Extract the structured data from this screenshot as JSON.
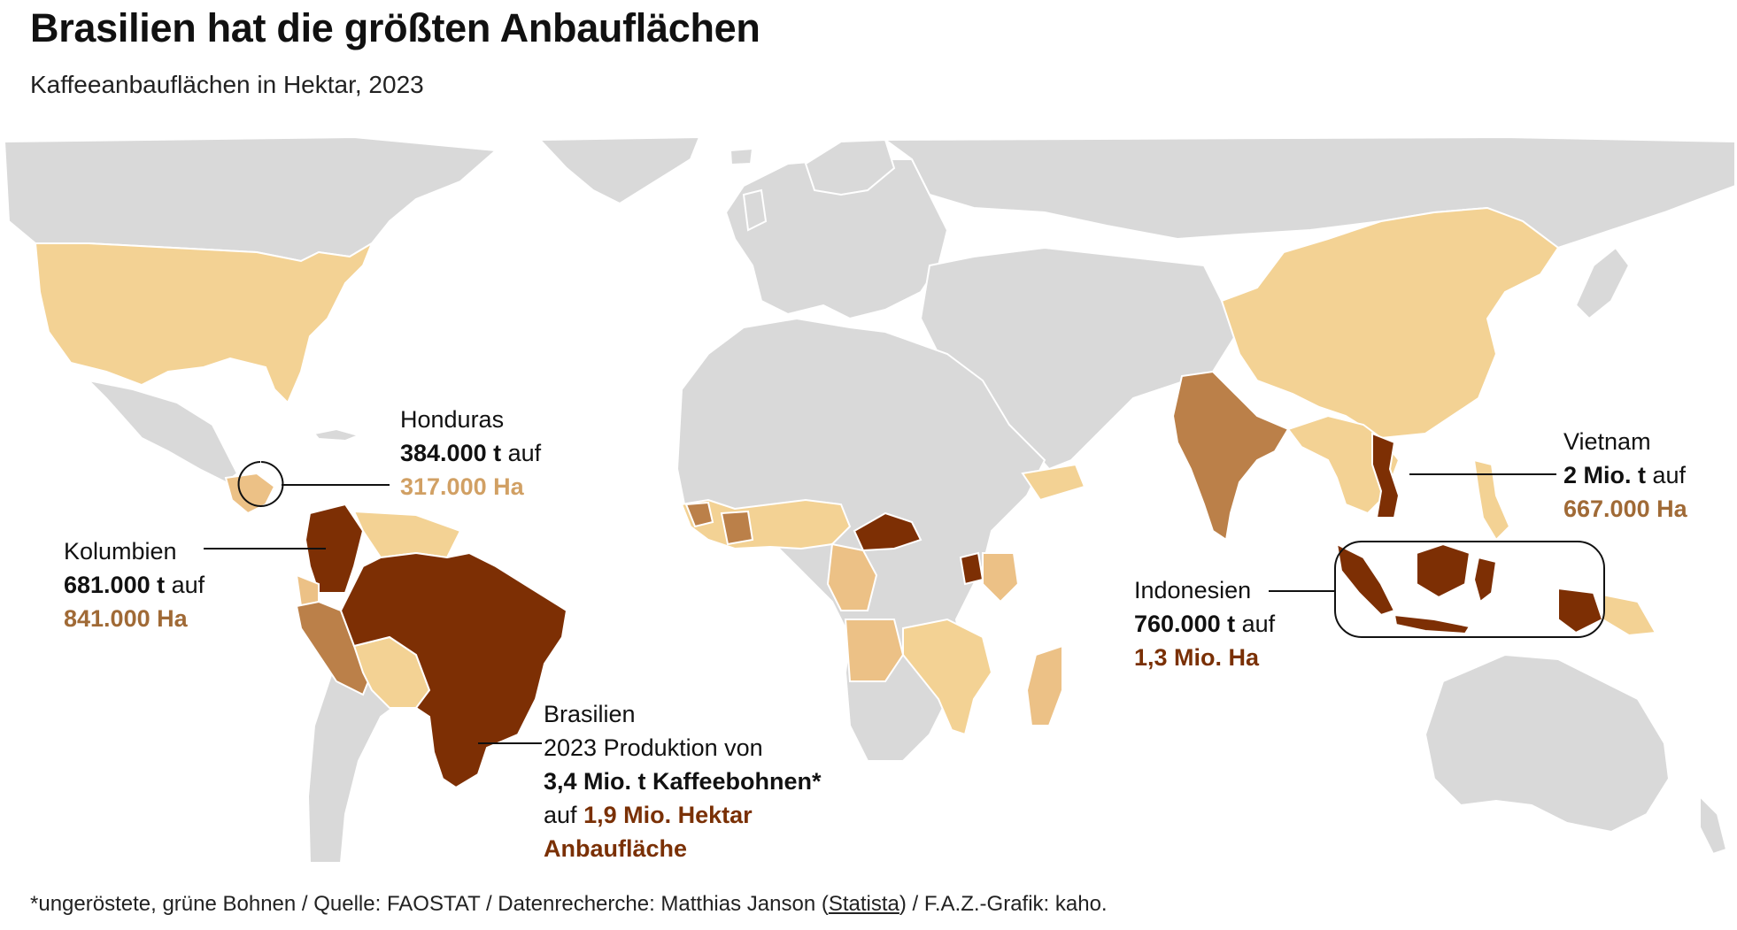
{
  "title": "Brasilien hat die größten Anbauflächen",
  "subtitle": "Kaffeeanbauflächen in Hektar, 2023",
  "colors": {
    "no_data": "#d9d9d9",
    "light": "#f3d294",
    "medium_light": "#ecc186",
    "medium": "#bb8049",
    "dark": "#7d2f04"
  },
  "annotations": {
    "honduras": {
      "name": "Honduras",
      "production": "384.000 t",
      "auf": "auf",
      "area": "317.000 Ha"
    },
    "kolumbien": {
      "name": "Kolumbien",
      "production": "681.000 t",
      "auf": "auf",
      "area": "841.000 Ha"
    },
    "brasilien": {
      "name": "Brasilien",
      "line2": "2023 Produktion von",
      "production": "3,4 Mio. t Kaffeebohnen*",
      "auf": "auf",
      "area_line1": "1,9 Mio. Hektar",
      "area_line2": "Anbaufläche"
    },
    "vietnam": {
      "name": "Vietnam",
      "production": "2 Mio. t",
      "auf": "auf",
      "area": "667.000 Ha"
    },
    "indonesien": {
      "name": "Indonesien",
      "production": "760.000 t",
      "auf": "auf",
      "area": "1,3 Mio. Ha"
    }
  },
  "footer": {
    "before": "*ungeröstete, grüne Bohnen / Quelle: FAOSTAT / Datenrecherche: Matthias Janson (",
    "link": "Statista",
    "after": ") / F.A.Z.-Grafik: kaho."
  }
}
